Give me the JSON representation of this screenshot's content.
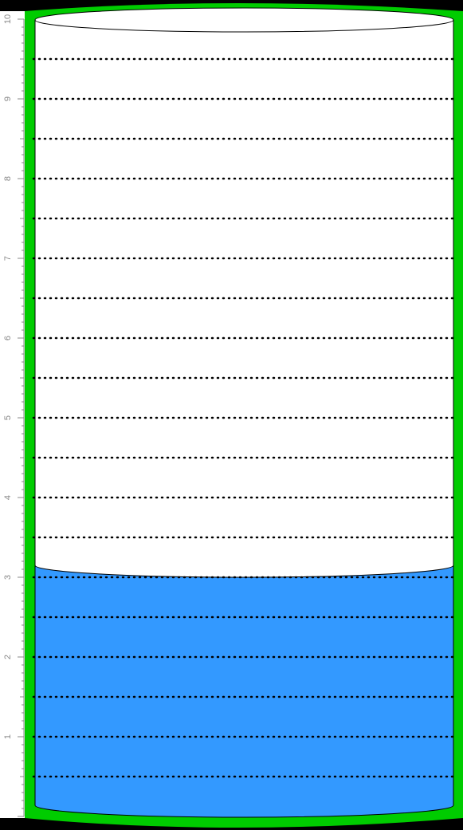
{
  "chart_data": {
    "type": "gauge",
    "title": "",
    "xlabel": "",
    "ylabel": "",
    "ylim": [
      0,
      10
    ],
    "major_ticks": [
      1,
      2,
      3,
      4,
      5,
      6,
      7,
      8,
      9,
      10
    ],
    "tick_labels": [
      "1",
      "2",
      "3",
      "4",
      "5",
      "6",
      "7",
      "8",
      "9",
      "10"
    ],
    "gridline_values": [
      0.5,
      1,
      1.5,
      2,
      2.5,
      3,
      3.5,
      4,
      4.5,
      5,
      5.5,
      6,
      6.5,
      7,
      7.5,
      8,
      8.5,
      9,
      9.5
    ],
    "grid": true,
    "grid_style": "dotted",
    "value": 3.15,
    "colors": {
      "liquid": "#3399ff",
      "container_border": "#00cc00",
      "background": "#ffffff",
      "corner": "#000000",
      "tick_label": "#888888",
      "gridline": "#000000"
    }
  }
}
